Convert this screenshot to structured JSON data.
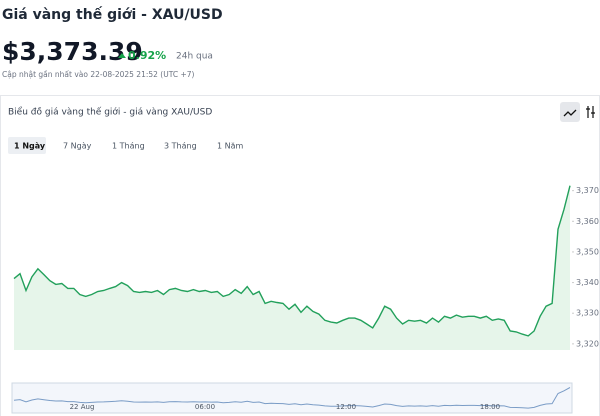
{
  "header": {
    "title": "Giá vàng thế giới - XAU/USD",
    "price": "$3,373.39",
    "change": "0.92%",
    "change_period": "24h qua",
    "updated": "Cập nhật gần nhất vào 22-08-2025 21:52 (UTC +7)"
  },
  "tabs": [
    "1 Ngày",
    "7 Ngày",
    "1 Tháng",
    "3 Tháng",
    "1 Năm"
  ],
  "navigator_labels": [
    "22 Aug",
    "06:00",
    "12:00",
    "18:00"
  ],
  "chart_data": {
    "type": "line",
    "title": "Biểu đồ giá vàng thế giới - giá vàng XAU/USD",
    "color": "#22a05b",
    "values": [
      3341.3,
      3342.9,
      3337.4,
      3341.9,
      3344.5,
      3342.6,
      3340.6,
      3339.4,
      3339.7,
      3338.1,
      3338.1,
      3336.1,
      3335.5,
      3336.1,
      3337.1,
      3337.4,
      3338.1,
      3338.7,
      3340.0,
      3339.0,
      3337.1,
      3336.8,
      3337.1,
      3336.8,
      3337.4,
      3336.1,
      3337.7,
      3338.1,
      3337.4,
      3337.1,
      3337.7,
      3337.1,
      3337.4,
      3336.8,
      3337.1,
      3335.5,
      3336.1,
      3337.7,
      3336.5,
      3338.7,
      3336.1,
      3337.1,
      3333.2,
      3333.9,
      3333.5,
      3333.2,
      3331.3,
      3332.9,
      3330.3,
      3332.3,
      3330.6,
      3329.7,
      3327.7,
      3327.1,
      3326.8,
      3327.7,
      3328.4,
      3328.4,
      3327.7,
      3326.5,
      3325.2,
      3328.4,
      3332.3,
      3331.3,
      3328.4,
      3326.5,
      3327.7,
      3327.4,
      3327.7,
      3326.8,
      3328.4,
      3327.1,
      3329.0,
      3328.4,
      3329.4,
      3328.7,
      3329.0,
      3329.0,
      3328.4,
      3329.0,
      3327.7,
      3328.1,
      3327.7,
      3324.2,
      3323.9,
      3323.2,
      3322.6,
      3324.2,
      3329.0,
      3332.3,
      3333.2,
      3357.4,
      3363.9,
      3371.6
    ],
    "ylim": [
      3318,
      3380
    ],
    "yticks": [
      {
        "value": 3320,
        "label": "3,320"
      },
      {
        "value": 3330,
        "label": "3,330"
      },
      {
        "value": 3340,
        "label": "3,340"
      },
      {
        "value": 3350,
        "label": "3,350"
      },
      {
        "value": 3360,
        "label": "3,360"
      },
      {
        "value": 3370,
        "label": "3,370"
      }
    ]
  }
}
